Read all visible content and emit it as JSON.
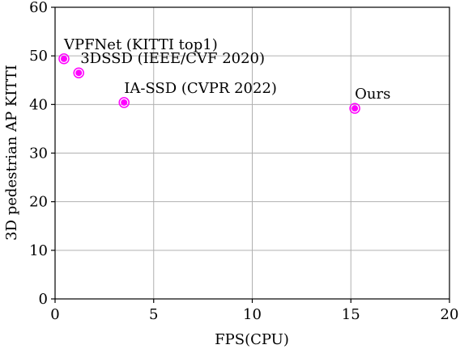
{
  "chart_data": {
    "type": "scatter",
    "title": "",
    "xlabel": "FPS(CPU)",
    "ylabel": "3D pedestrian AP KITTI",
    "xlim": [
      0,
      20
    ],
    "ylim": [
      0,
      60
    ],
    "x_ticks": [
      0,
      5,
      10,
      15,
      20
    ],
    "y_ticks": [
      0,
      10,
      20,
      30,
      40,
      50,
      60
    ],
    "grid": true,
    "marker_color": "#ff00ff",
    "points": [
      {
        "label": "VPFNet (KITTI top1)",
        "x": 0.45,
        "y": 49.4
      },
      {
        "label": "3DSSD (IEEE/CVF 2020)",
        "x": 1.2,
        "y": 46.5
      },
      {
        "label": "IA-SSD (CVPR 2022)",
        "x": 3.5,
        "y": 40.4
      },
      {
        "label": "Ours",
        "x": 15.2,
        "y": 39.2
      }
    ]
  }
}
